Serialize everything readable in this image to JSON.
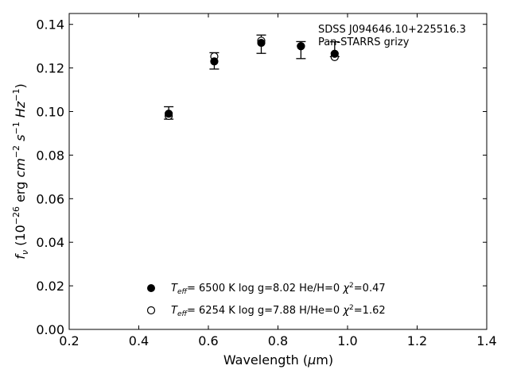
{
  "chart_data": {
    "type": "scatter",
    "title": "",
    "annotation_lines": [
      "SDSS J094646.10+225516.3",
      "Pan-STARRS grizy"
    ],
    "xlabel": "Wavelength (μm)",
    "ylabel": "f_ν (10^-26 erg cm^-2 s^-1 Hz^-1)",
    "xlim": [
      0.2,
      1.4
    ],
    "ylim": [
      0.0,
      0.145
    ],
    "xticks": [
      "0.2",
      "0.4",
      "0.6",
      "0.8",
      "1.0",
      "1.2",
      "1.4"
    ],
    "yticks": [
      "0.00",
      "0.02",
      "0.04",
      "0.06",
      "0.08",
      "0.10",
      "0.12",
      "0.14"
    ],
    "observed": {
      "x": [
        0.486,
        0.617,
        0.752,
        0.866,
        0.963
      ],
      "y": [
        0.099,
        0.123,
        0.131,
        0.1283,
        0.13
      ],
      "yerr_low": [
        0.0025,
        0.0035,
        0.0043,
        0.004,
        0.0048
      ],
      "yerr_high": [
        0.0032,
        0.004,
        0.0041,
        0.0038,
        0.002
      ]
    },
    "series": [
      {
        "marker": "filled",
        "x": [
          0.486,
          0.617,
          0.752,
          0.866,
          0.963
        ],
        "y": [
          0.099,
          0.123,
          0.1315,
          0.13,
          0.1265
        ]
      },
      {
        "marker": "open",
        "x": [
          0.486,
          0.617,
          0.752,
          0.866,
          0.963
        ],
        "y": [
          0.098,
          0.1253,
          0.1325,
          0.13,
          0.125
        ]
      }
    ],
    "legend": {
      "location": "lower-center",
      "entries": [
        {
          "marker": "filled",
          "teff_value": "6500 K",
          "logg": "log g=8.02",
          "comp": "He/H=0",
          "chi_value": "=0.47"
        },
        {
          "marker": "open",
          "teff_value": "6254 K",
          "logg": "log g=7.88",
          "comp": "H/He=0",
          "chi_value": "=1.62"
        }
      ]
    }
  }
}
